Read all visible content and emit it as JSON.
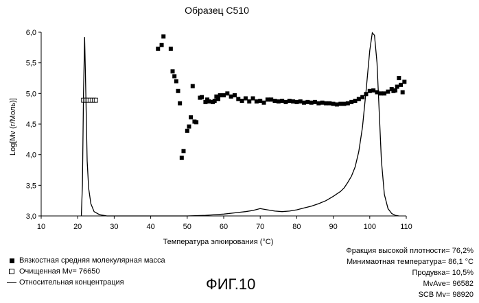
{
  "chart_data": {
    "type": "scatter",
    "title": "Образец С510",
    "xlabel": "Температура элюирования (°C)",
    "ylabel": "Log[Mv (г/Моль)]",
    "xlim": [
      10,
      110
    ],
    "ylim": [
      3.0,
      6.0
    ],
    "x_ticks": [
      "10",
      "20",
      "30",
      "40",
      "50",
      "60",
      "70",
      "80",
      "90",
      "100",
      "110"
    ],
    "y_ticks": [
      "3,0",
      "3,5",
      "4,0",
      "4,5",
      "5,0",
      "5,5",
      "6,0"
    ],
    "grid": false,
    "series": [
      {
        "name": "Вязкостная средняя молекулярная масса",
        "marker": "filled-square",
        "points": [
          [
            42.0,
            5.73
          ],
          [
            43.0,
            5.79
          ],
          [
            43.5,
            5.93
          ],
          [
            45.5,
            5.73
          ],
          [
            46.0,
            5.36
          ],
          [
            46.5,
            5.28
          ],
          [
            47.0,
            5.2
          ],
          [
            47.5,
            5.04
          ],
          [
            48.0,
            4.84
          ],
          [
            48.5,
            3.95
          ],
          [
            49.0,
            4.06
          ],
          [
            50.0,
            4.39
          ],
          [
            50.5,
            4.46
          ],
          [
            51.0,
            4.61
          ],
          [
            51.5,
            5.12
          ],
          [
            52.0,
            4.54
          ],
          [
            52.5,
            4.53
          ],
          [
            53.5,
            4.93
          ],
          [
            54.0,
            4.94
          ],
          [
            55.0,
            4.86
          ],
          [
            55.5,
            4.9
          ],
          [
            56.0,
            4.87
          ],
          [
            57.0,
            4.86
          ],
          [
            57.5,
            4.88
          ],
          [
            58.0,
            4.95
          ],
          [
            58.5,
            4.91
          ],
          [
            59.0,
            4.97
          ],
          [
            60.0,
            4.97
          ],
          [
            61.0,
            5.0
          ],
          [
            62.0,
            4.95
          ],
          [
            63.0,
            4.97
          ],
          [
            64.0,
            4.91
          ],
          [
            65.0,
            4.88
          ],
          [
            66.0,
            4.92
          ],
          [
            67.0,
            4.87
          ],
          [
            68.0,
            4.92
          ],
          [
            69.0,
            4.87
          ],
          [
            70.0,
            4.88
          ],
          [
            71.0,
            4.85
          ],
          [
            72.0,
            4.9
          ],
          [
            73.0,
            4.9
          ],
          [
            74.0,
            4.88
          ],
          [
            75.0,
            4.87
          ],
          [
            76.0,
            4.88
          ],
          [
            77.0,
            4.86
          ],
          [
            78.0,
            4.88
          ],
          [
            79.0,
            4.87
          ],
          [
            80.0,
            4.86
          ],
          [
            81.0,
            4.87
          ],
          [
            82.0,
            4.85
          ],
          [
            83.0,
            4.86
          ],
          [
            84.0,
            4.85
          ],
          [
            85.0,
            4.86
          ],
          [
            86.0,
            4.84
          ],
          [
            87.0,
            4.85
          ],
          [
            88.0,
            4.84
          ],
          [
            89.0,
            4.84
          ],
          [
            90.0,
            4.83
          ],
          [
            91.0,
            4.82
          ],
          [
            92.0,
            4.83
          ],
          [
            93.0,
            4.83
          ],
          [
            94.0,
            4.84
          ],
          [
            95.0,
            4.86
          ],
          [
            96.0,
            4.88
          ],
          [
            97.0,
            4.91
          ],
          [
            98.0,
            4.94
          ],
          [
            99.0,
            4.99
          ],
          [
            100.0,
            5.04
          ],
          [
            101.0,
            5.05
          ],
          [
            102.0,
            5.02
          ],
          [
            103.0,
            5.0
          ],
          [
            104.0,
            5.0
          ],
          [
            105.0,
            5.03
          ],
          [
            106.0,
            5.07
          ],
          [
            106.5,
            5.04
          ],
          [
            107.0,
            5.05
          ],
          [
            107.5,
            5.11
          ],
          [
            108.0,
            5.25
          ],
          [
            108.5,
            5.14
          ],
          [
            109.0,
            5.02
          ],
          [
            109.5,
            5.19
          ]
        ]
      },
      {
        "name": "Очищенная Mv=76650",
        "marker": "open-square",
        "points": [
          [
            21.5,
            4.89
          ],
          [
            22.0,
            4.89
          ],
          [
            22.5,
            4.89
          ],
          [
            23.0,
            4.89
          ],
          [
            23.5,
            4.89
          ],
          [
            24.0,
            4.89
          ],
          [
            24.5,
            4.89
          ],
          [
            25.0,
            4.89
          ]
        ]
      },
      {
        "name": "Относительная концентрация",
        "marker": "line",
        "points": [
          [
            21.0,
            3.0
          ],
          [
            21.3,
            3.5
          ],
          [
            21.6,
            5.0
          ],
          [
            21.9,
            5.92
          ],
          [
            22.2,
            5.1
          ],
          [
            22.6,
            3.9
          ],
          [
            23.0,
            3.45
          ],
          [
            23.6,
            3.2
          ],
          [
            24.5,
            3.07
          ],
          [
            26.0,
            3.02
          ],
          [
            28.0,
            3.0
          ],
          [
            50.0,
            3.0
          ],
          [
            55.0,
            3.01
          ],
          [
            60.0,
            3.03
          ],
          [
            63.0,
            3.05
          ],
          [
            66.0,
            3.07
          ],
          [
            68.0,
            3.09
          ],
          [
            70.0,
            3.12
          ],
          [
            72.0,
            3.1
          ],
          [
            74.0,
            3.08
          ],
          [
            76.0,
            3.07
          ],
          [
            78.0,
            3.08
          ],
          [
            80.0,
            3.1
          ],
          [
            82.0,
            3.13
          ],
          [
            84.0,
            3.16
          ],
          [
            86.0,
            3.2
          ],
          [
            88.0,
            3.25
          ],
          [
            90.0,
            3.32
          ],
          [
            92.0,
            3.4
          ],
          [
            93.0,
            3.46
          ],
          [
            94.0,
            3.55
          ],
          [
            95.0,
            3.65
          ],
          [
            96.0,
            3.8
          ],
          [
            97.0,
            4.05
          ],
          [
            98.0,
            4.45
          ],
          [
            99.0,
            5.05
          ],
          [
            100.0,
            5.7
          ],
          [
            100.7,
            5.99
          ],
          [
            101.3,
            5.95
          ],
          [
            102.0,
            5.5
          ],
          [
            102.6,
            4.7
          ],
          [
            103.2,
            3.9
          ],
          [
            104.0,
            3.35
          ],
          [
            105.0,
            3.12
          ],
          [
            106.0,
            3.04
          ],
          [
            107.0,
            3.01
          ],
          [
            108.0,
            3.0
          ]
        ]
      }
    ]
  },
  "legend": {
    "items": [
      {
        "label": "Вязкостная средняя молекулярная масса"
      },
      {
        "label": "Очищенная Mv= 76650"
      },
      {
        "label": "Относительная концентрация"
      }
    ]
  },
  "stats": {
    "high_density_fraction": "Фракция высокой плотности= 76,2%",
    "min_temp": "Минимаотная температура= 86,1 °C",
    "purge": "Продувка= 10,5%",
    "mvave": "MvAve= 96582",
    "scb_mv": "SCB Mv= 98920"
  },
  "figure_label": "ФИГ.10"
}
